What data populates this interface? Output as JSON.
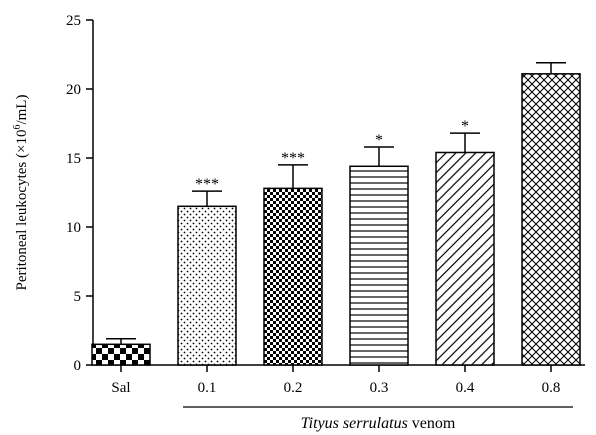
{
  "chart_data": {
    "type": "bar",
    "categories": [
      "Sal",
      "0.1",
      "0.2",
      "0.3",
      "0.4",
      "0.8"
    ],
    "values": [
      1.5,
      11.5,
      12.8,
      14.4,
      15.4,
      21.1
    ],
    "errors": [
      0.4,
      1.1,
      1.7,
      1.4,
      1.4,
      0.8
    ],
    "annotations": [
      "",
      "***",
      "***",
      "*",
      "*",
      ""
    ],
    "patterns": [
      "checker",
      "dots",
      "fine-checker",
      "horizontal-lines",
      "diagonal-lines",
      "crosshatch"
    ],
    "ylabel_prefix": "Peritoneal leukocytes (×10",
    "ylabel_sup": "6",
    "ylabel_suffix": "/mL)",
    "xlabel": "",
    "ylim": [
      0,
      25
    ],
    "yticks": [
      0,
      5,
      10,
      15,
      20,
      25
    ],
    "group_label_italic": "Tityus serrulatus",
    "group_label_rest": " venom",
    "bar_color": "#000000"
  }
}
